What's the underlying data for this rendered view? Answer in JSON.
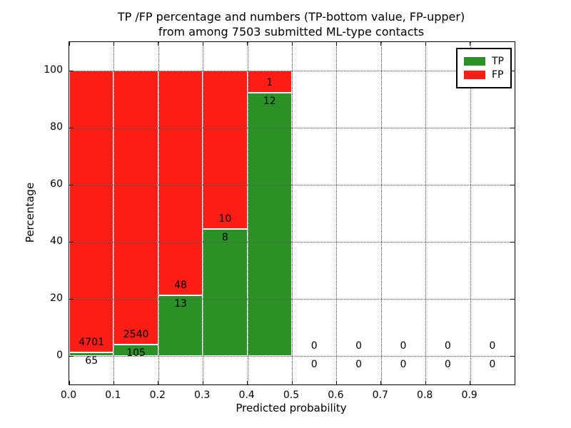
{
  "figure": {
    "title_line1": "TP /FP percentage and numbers (TP-bottom value, FP-upper)",
    "title_line2": "from among 7503 submitted ML-type contacts"
  },
  "chart_data": {
    "type": "bar",
    "stacked": true,
    "normalized": "each bar shows TP and FP as percent of bin total; numeric labels are raw counts",
    "title": "TP /FP percentage and numbers (TP-bottom value, FP-upper) from among 7503 submitted ML-type contacts",
    "total_submitted": 7503,
    "xlabel": "Predicted probability",
    "ylabel": "Percentage",
    "xlim": [
      0.0,
      1.0
    ],
    "ylim": [
      -10,
      110
    ],
    "xticks": [
      0.0,
      0.1,
      0.2,
      0.3,
      0.4,
      0.5,
      0.6,
      0.7,
      0.8,
      0.9
    ],
    "xtick_labels": [
      "0.0",
      "0.1",
      "0.2",
      "0.3",
      "0.4",
      "0.5",
      "0.6",
      "0.7",
      "0.8",
      "0.9"
    ],
    "yticks": [
      0,
      20,
      40,
      60,
      80,
      100
    ],
    "ytick_labels": [
      "0",
      "20",
      "40",
      "60",
      "80",
      "100"
    ],
    "grid": true,
    "legend_position": "upper right",
    "legend": [
      {
        "label": "TP",
        "color": "#2a9127"
      },
      {
        "label": "FP",
        "color": "#ff1d15"
      }
    ],
    "series": [
      {
        "name": "TP",
        "color": "#2a9127",
        "counts": [
          65,
          105,
          13,
          8,
          12,
          0,
          0,
          0,
          0,
          0
        ]
      },
      {
        "name": "FP",
        "color": "#ff1d15",
        "counts": [
          4701,
          2540,
          48,
          10,
          1,
          0,
          0,
          0,
          0,
          0
        ]
      }
    ],
    "bins": [
      {
        "x0": 0.0,
        "x1": 0.1,
        "tp": 65,
        "fp": 4701
      },
      {
        "x0": 0.1,
        "x1": 0.2,
        "tp": 105,
        "fp": 2540
      },
      {
        "x0": 0.2,
        "x1": 0.3,
        "tp": 13,
        "fp": 48
      },
      {
        "x0": 0.3,
        "x1": 0.4,
        "tp": 8,
        "fp": 10
      },
      {
        "x0": 0.4,
        "x1": 0.5,
        "tp": 12,
        "fp": 1
      },
      {
        "x0": 0.5,
        "x1": 0.6,
        "tp": 0,
        "fp": 0
      },
      {
        "x0": 0.6,
        "x1": 0.7,
        "tp": 0,
        "fp": 0
      },
      {
        "x0": 0.7,
        "x1": 0.8,
        "tp": 0,
        "fp": 0
      },
      {
        "x0": 0.8,
        "x1": 0.9,
        "tp": 0,
        "fp": 0
      },
      {
        "x0": 0.9,
        "x1": 1.0,
        "tp": 0,
        "fp": 0
      }
    ]
  }
}
